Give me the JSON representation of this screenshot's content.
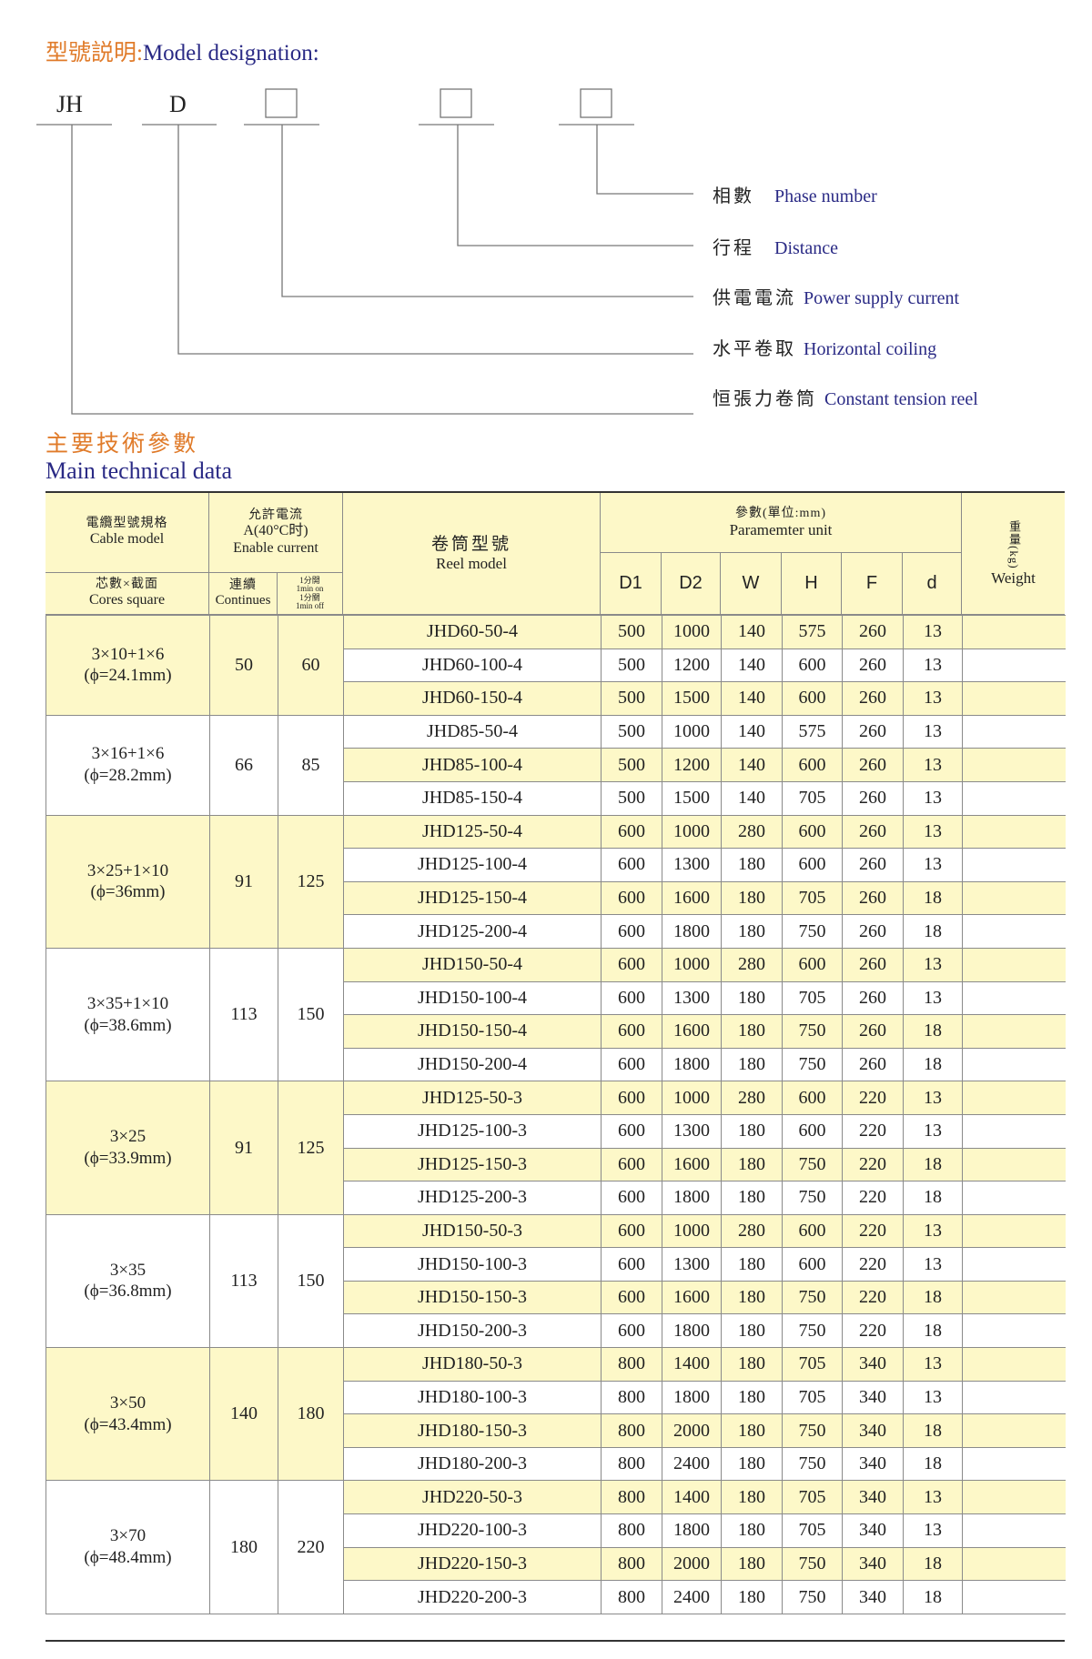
{
  "designation": {
    "title_zh": "型號説明:",
    "title_en": "Model designation:",
    "codes": [
      "JH",
      "D"
    ],
    "legend": [
      {
        "zh": "相數",
        "en": "Phase number"
      },
      {
        "zh": "行程",
        "en": "Distance"
      },
      {
        "zh": "供電電流",
        "en": "Power supply current"
      },
      {
        "zh": "水平卷取",
        "en": "Horizontal coiling"
      },
      {
        "zh": "恒張力卷筒",
        "en": "Constant tension reel"
      }
    ]
  },
  "section": {
    "title_zh": "主要技術參數",
    "title_en": "Main technical data"
  },
  "colors": {
    "accent_orange": "#e07b2a",
    "accent_navy": "#2a2a85",
    "highlight_yellow": "#fdf8c8"
  },
  "table": {
    "headers": {
      "cable_zh": "電纜型號規格",
      "cable_en": "Cable model",
      "cores_zh": "芯數×截面",
      "cores_en": "Cores square",
      "current_zh": "允許電流",
      "current_unit": "A(40°C时)",
      "current_en": "Enable current",
      "continues_zh": "連續",
      "continues_en": "Continues",
      "on_zh": "1分開",
      "on_en": "1min on",
      "off_zh": "1分關",
      "off_en": "1min off",
      "reel_zh": "卷筒型號",
      "reel_en": "Reel model",
      "param_zh": "參數(單位:mm)",
      "param_en": "Paramemter unit",
      "cols": [
        "D1",
        "D2",
        "W",
        "H",
        "F",
        "d"
      ],
      "weight_zh": "重量(kg)",
      "weight_en": "Weight"
    },
    "groups": [
      {
        "cable": "3×10+1×6",
        "dia": "(ϕ=24.1mm)",
        "continues": "50",
        "intermittent": "60",
        "rows": [
          {
            "model": "JHD60-50-4",
            "v": [
              "500",
              "1000",
              "140",
              "575",
              "260",
              "13"
            ]
          },
          {
            "model": "JHD60-100-4",
            "v": [
              "500",
              "1200",
              "140",
              "600",
              "260",
              "13"
            ]
          },
          {
            "model": "JHD60-150-4",
            "v": [
              "500",
              "1500",
              "140",
              "600",
              "260",
              "13"
            ]
          }
        ]
      },
      {
        "cable": "3×16+1×6",
        "dia": "(ϕ=28.2mm)",
        "continues": "66",
        "intermittent": "85",
        "rows": [
          {
            "model": "JHD85-50-4",
            "v": [
              "500",
              "1000",
              "140",
              "575",
              "260",
              "13"
            ]
          },
          {
            "model": "JHD85-100-4",
            "v": [
              "500",
              "1200",
              "140",
              "600",
              "260",
              "13"
            ]
          },
          {
            "model": "JHD85-150-4",
            "v": [
              "500",
              "1500",
              "140",
              "705",
              "260",
              "13"
            ]
          }
        ]
      },
      {
        "cable": "3×25+1×10",
        "dia": "(ϕ=36mm)",
        "continues": "91",
        "intermittent": "125",
        "rows": [
          {
            "model": "JHD125-50-4",
            "v": [
              "600",
              "1000",
              "280",
              "600",
              "260",
              "13"
            ]
          },
          {
            "model": "JHD125-100-4",
            "v": [
              "600",
              "1300",
              "180",
              "600",
              "260",
              "13"
            ]
          },
          {
            "model": "JHD125-150-4",
            "v": [
              "600",
              "1600",
              "180",
              "705",
              "260",
              "18"
            ]
          },
          {
            "model": "JHD125-200-4",
            "v": [
              "600",
              "1800",
              "180",
              "750",
              "260",
              "18"
            ]
          }
        ]
      },
      {
        "cable": "3×35+1×10",
        "dia": "(ϕ=38.6mm)",
        "continues": "113",
        "intermittent": "150",
        "rows": [
          {
            "model": "JHD150-50-4",
            "v": [
              "600",
              "1000",
              "280",
              "600",
              "260",
              "13"
            ]
          },
          {
            "model": "JHD150-100-4",
            "v": [
              "600",
              "1300",
              "180",
              "705",
              "260",
              "13"
            ]
          },
          {
            "model": "JHD150-150-4",
            "v": [
              "600",
              "1600",
              "180",
              "750",
              "260",
              "18"
            ]
          },
          {
            "model": "JHD150-200-4",
            "v": [
              "600",
              "1800",
              "180",
              "750",
              "260",
              "18"
            ]
          }
        ]
      },
      {
        "cable": "3×25",
        "dia": "(ϕ=33.9mm)",
        "continues": "91",
        "intermittent": "125",
        "rows": [
          {
            "model": "JHD125-50-3",
            "v": [
              "600",
              "1000",
              "280",
              "600",
              "220",
              "13"
            ]
          },
          {
            "model": "JHD125-100-3",
            "v": [
              "600",
              "1300",
              "180",
              "600",
              "220",
              "13"
            ]
          },
          {
            "model": "JHD125-150-3",
            "v": [
              "600",
              "1600",
              "180",
              "750",
              "220",
              "18"
            ]
          },
          {
            "model": "JHD125-200-3",
            "v": [
              "600",
              "1800",
              "180",
              "750",
              "220",
              "18"
            ]
          }
        ]
      },
      {
        "cable": "3×35",
        "dia": "(ϕ=36.8mm)",
        "continues": "113",
        "intermittent": "150",
        "rows": [
          {
            "model": "JHD150-50-3",
            "v": [
              "600",
              "1000",
              "280",
              "600",
              "220",
              "13"
            ]
          },
          {
            "model": "JHD150-100-3",
            "v": [
              "600",
              "1300",
              "180",
              "600",
              "220",
              "13"
            ]
          },
          {
            "model": "JHD150-150-3",
            "v": [
              "600",
              "1600",
              "180",
              "750",
              "220",
              "18"
            ]
          },
          {
            "model": "JHD150-200-3",
            "v": [
              "600",
              "1800",
              "180",
              "750",
              "220",
              "18"
            ]
          }
        ]
      },
      {
        "cable": "3×50",
        "dia": "(ϕ=43.4mm)",
        "continues": "140",
        "intermittent": "180",
        "rows": [
          {
            "model": "JHD180-50-3",
            "v": [
              "800",
              "1400",
              "180",
              "705",
              "340",
              "13"
            ]
          },
          {
            "model": "JHD180-100-3",
            "v": [
              "800",
              "1800",
              "180",
              "705",
              "340",
              "13"
            ]
          },
          {
            "model": "JHD180-150-3",
            "v": [
              "800",
              "2000",
              "180",
              "750",
              "340",
              "18"
            ]
          },
          {
            "model": "JHD180-200-3",
            "v": [
              "800",
              "2400",
              "180",
              "750",
              "340",
              "18"
            ]
          }
        ]
      },
      {
        "cable": "3×70",
        "dia": "(ϕ=48.4mm)",
        "continues": "180",
        "intermittent": "220",
        "rows": [
          {
            "model": "JHD220-50-3",
            "v": [
              "800",
              "1400",
              "180",
              "705",
              "340",
              "13"
            ]
          },
          {
            "model": "JHD220-100-3",
            "v": [
              "800",
              "1800",
              "180",
              "705",
              "340",
              "13"
            ]
          },
          {
            "model": "JHD220-150-3",
            "v": [
              "800",
              "2000",
              "180",
              "750",
              "340",
              "18"
            ]
          },
          {
            "model": "JHD220-200-3",
            "v": [
              "800",
              "2400",
              "180",
              "750",
              "340",
              "18"
            ]
          }
        ]
      }
    ]
  }
}
